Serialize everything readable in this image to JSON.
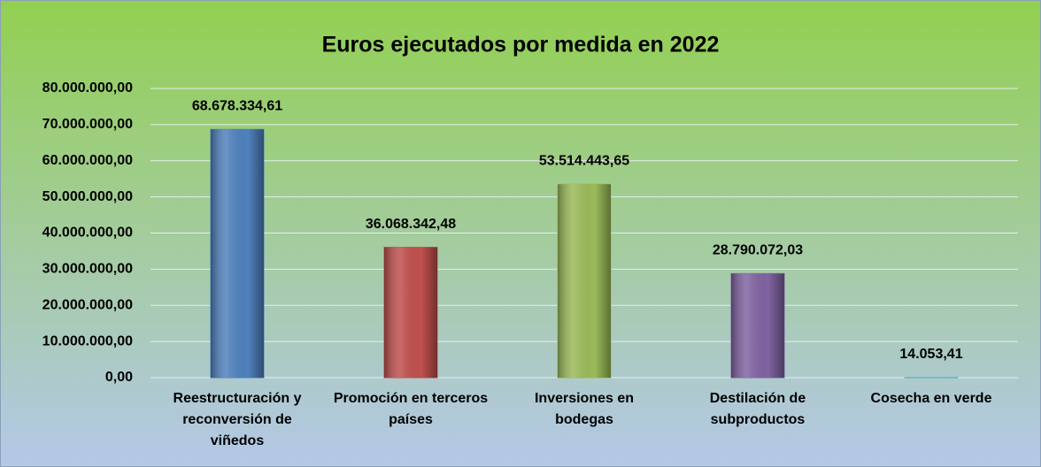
{
  "chart_data": {
    "type": "bar",
    "title": "Euros ejecutados por medida en 2022",
    "categories": [
      "Reestructuración y reconversión de viñedos",
      "Promoción en terceros países",
      "Inversiones en bodegas",
      "Destilación de subproductos",
      "Cosecha en verde"
    ],
    "values": [
      68678334.61,
      36068342.48,
      53514443.65,
      28790072.03,
      14053.41
    ],
    "value_labels": [
      "68.678.334,61",
      "36.068.342,48",
      "53.514.443,65",
      "28.790.072,03",
      "14.053,41"
    ],
    "colors": [
      "#4f81bd",
      "#c0504d",
      "#9bbb59",
      "#8064a2",
      "#4bacc6"
    ],
    "ylim": [
      0,
      80000000
    ],
    "yticks": [
      {
        "value": 0,
        "label": "0,00"
      },
      {
        "value": 10000000,
        "label": "10.000.000,00"
      },
      {
        "value": 20000000,
        "label": "20.000.000,00"
      },
      {
        "value": 30000000,
        "label": "30.000.000,00"
      },
      {
        "value": 40000000,
        "label": "40.000.000,00"
      },
      {
        "value": 50000000,
        "label": "50.000.000,00"
      },
      {
        "value": 60000000,
        "label": "60.000.000,00"
      },
      {
        "value": 70000000,
        "label": "70.000.000,00"
      },
      {
        "value": 80000000,
        "label": "80.000.000,00"
      }
    ],
    "grid": true
  }
}
